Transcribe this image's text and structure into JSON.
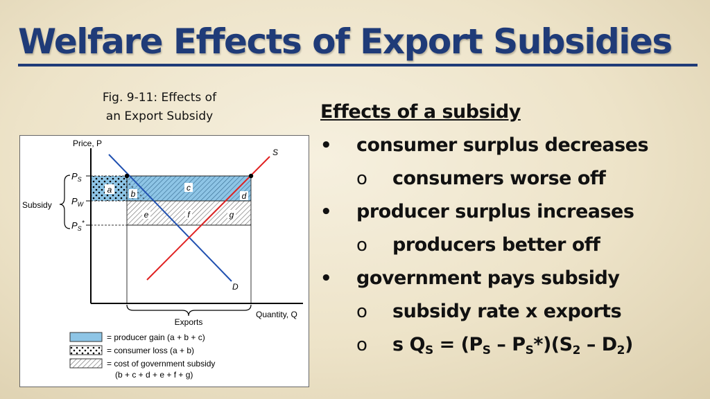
{
  "slide": {
    "title": "Welfare Effects of Export Subsidies",
    "caption_line1": "Fig. 9-11: Effects of",
    "caption_line2": "an Export Subsidy"
  },
  "figure": {
    "y_axis_label": "Price, P",
    "x_axis_label": "Quantity, Q",
    "supply_label": "S",
    "demand_label": "D",
    "price_labels": {
      "ps": "P",
      "ps_sub": "S",
      "pw": "P",
      "pw_sub": "W",
      "pss": "P",
      "pss_sub": "S",
      "pss_star": "*"
    },
    "subsidy_label": "Subsidy",
    "exports_label": "Exports",
    "area_labels": {
      "a": "a",
      "b": "b",
      "c": "c",
      "d": "d",
      "e": "e",
      "f": "f",
      "g": "g"
    },
    "legend": {
      "producer_gain": "= producer gain (a + b + c)",
      "consumer_loss": "= consumer loss (a + b)",
      "gov_cost_line1": "= cost of government subsidy",
      "gov_cost_line2": "(b + c + d + e + f + g)"
    },
    "colors": {
      "producer_gain": "#8ec5e6",
      "supply_line": "#e02020",
      "demand_line": "#2050b0"
    }
  },
  "bullets": {
    "heading": "Effects of a subsidy",
    "bullet_mark": "•",
    "sub_mark": "o",
    "items": [
      {
        "text": "consumer surplus decreases",
        "sub": "consumers worse off"
      },
      {
        "text": "producer surplus increases",
        "sub": "producers better off"
      },
      {
        "text": "government pays subsidy",
        "sub": "subsidy rate x exports"
      }
    ],
    "formula": {
      "s": "s Q",
      "s_sub": "S",
      "eq": " = (P",
      "ps_sub": "S",
      "minus": " – P",
      "pss_sub": "S",
      "star_close": "*)(S",
      "s2_sub": "2",
      "minus_d": " – D",
      "d2_sub": "2",
      "close": ")"
    }
  }
}
